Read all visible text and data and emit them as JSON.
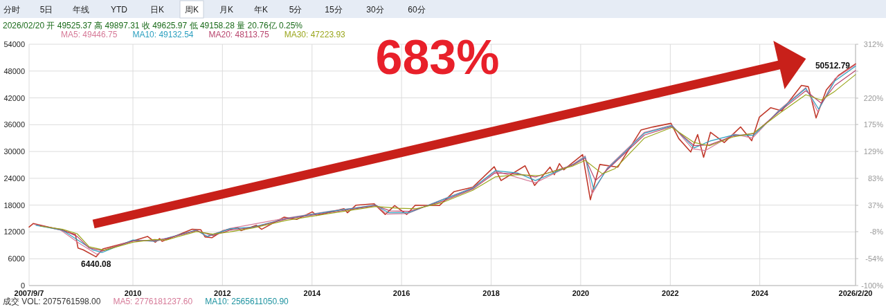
{
  "chart_data": {
    "type": "line",
    "annotations": [
      "分时 5日 年线 YTD 日K 周K 月K 年K 5分 15分 30分 60分",
      "2026/02/20 开 49525.37 高 49897.31 收 49625.97 低 49158.28 量 20.76亿 0.25%",
      "683%",
      {
        "text": "6440.08",
        "x": "2009-03-06",
        "y": 6440.08
      },
      "50512.79",
      "成交 VOL: 2075761598.00",
      "MA5: 2776181237.60",
      "MA10: 2565611050.90"
    ],
    "xlim": [
      "2007-09-07",
      "2026-02-20"
    ],
    "xticks": [
      {
        "value": "2007-09-07",
        "label": "2007/9/7"
      },
      {
        "value": "2010-01-01",
        "label": "2010"
      },
      {
        "value": "2012-01-01",
        "label": "2012"
      },
      {
        "value": "2014-01-01",
        "label": "2014"
      },
      {
        "value": "2016-01-01",
        "label": "2016"
      },
      {
        "value": "2018-01-01",
        "label": "2018"
      },
      {
        "value": "2020-01-01",
        "label": "2020"
      },
      {
        "value": "2022-01-01",
        "label": "2022"
      },
      {
        "value": "2024-01-01",
        "label": "2024"
      },
      {
        "value": "2026-02-20",
        "label": "2026/2/20"
      }
    ],
    "ylim": [
      0,
      54000
    ],
    "yticks": [
      0,
      6000,
      12000,
      18000,
      24000,
      30000,
      36000,
      42000,
      48000,
      54000
    ],
    "y2lim": [
      -100,
      312
    ],
    "y2ticks": [
      {
        "value": -100,
        "label": "-100%"
      },
      {
        "value": -54,
        "label": "-54%"
      },
      {
        "value": -8,
        "label": "-8%"
      },
      {
        "value": 37,
        "label": "37%"
      },
      {
        "value": 83,
        "label": "83%"
      },
      {
        "value": 129,
        "label": "129%"
      },
      {
        "value": 175,
        "label": "175%"
      },
      {
        "value": 220,
        "label": "220%"
      },
      {
        "value": 266,
        "label": null
      },
      {
        "value": 312,
        "label": "312%"
      }
    ],
    "grid": true,
    "legend": "top left",
    "series": [
      {
        "color": "#c0392b",
        "x": [
          "2007-09-07",
          "2007-10-12",
          "2008-05-16",
          "2008-09-19",
          "2008-10-10",
          "2008-11-21",
          "2009-03-06",
          "2009-05-01",
          "2010-01-01",
          "2010-04-30",
          "2010-07-02",
          "2010-08-06",
          "2010-08-27",
          "2011-04-29",
          "2011-07-08",
          "2011-08-12",
          "2011-10-07",
          "2012-01-06",
          "2012-05-04",
          "2012-06-01",
          "2012-10-05",
          "2012-11-16",
          "2013-05-17",
          "2013-08-30",
          "2014-01-03",
          "2014-02-07",
          "2014-09-19",
          "2014-10-17",
          "2014-12-26",
          "2015-05-22",
          "2015-08-21",
          "2015-11-06",
          "2016-02-12",
          "2016-04-22",
          "2016-11-04",
          "2017-03-03",
          "2017-08-04",
          "2018-01-26",
          "2018-03-23",
          "2018-10-05",
          "2018-12-21",
          "2019-04-26",
          "2019-05-31",
          "2019-07-12",
          "2019-08-16",
          "2020-01-17",
          "2020-03-20",
          "2020-06-05",
          "2020-10-30",
          "2021-05-07",
          "2021-08-13",
          "2022-01-07",
          "2022-03-11",
          "2022-06-17",
          "2022-08-12",
          "2022-09-30",
          "2022-11-25",
          "2023-03-17",
          "2023-07-28",
          "2023-10-27",
          "2023-12-29",
          "2024-03-29",
          "2024-06-28",
          "2024-12-06",
          "2025-01-31",
          "2025-04-04",
          "2025-06-27",
          "2025-10-03",
          "2026-02-20"
        ],
        "values": [
          13100,
          13900,
          12500,
          11400,
          8400,
          8000,
          6440.08,
          8200,
          10000,
          11000,
          9700,
          10500,
          9900,
          12600,
          12500,
          10900,
          10700,
          12300,
          13000,
          12300,
          13500,
          12600,
          15300,
          14800,
          16500,
          15700,
          17200,
          16300,
          18000,
          18300,
          15900,
          17900,
          15900,
          18000,
          17900,
          21000,
          22000,
          26600,
          23500,
          26800,
          22400,
          26500,
          24800,
          27300,
          25900,
          29300,
          19200,
          27100,
          26500,
          34800,
          35500,
          36300,
          32900,
          29900,
          33800,
          28700,
          34300,
          32000,
          35500,
          32400,
          37700,
          39800,
          39100,
          44800,
          44500,
          37500,
          43800,
          47000,
          49600
        ]
      },
      {
        "name": "MA5: 49446.75",
        "color": "#d67a98",
        "x": [
          "2007-10-19",
          "2008-05-23",
          "2008-10-17",
          "2009-03-13",
          "2009-05-08",
          "2010-01-01",
          "2010-07-09",
          "2011-06-03",
          "2011-08-26",
          "2012-03-02",
          "2013-06-07",
          "2014-06-06",
          "2015-06-05",
          "2015-09-04",
          "2016-02-19",
          "2016-12-02",
          "2017-08-04",
          "2018-02-09",
          "2018-12-28",
          "2019-11-01",
          "2020-02-07",
          "2020-04-03",
          "2020-08-07",
          "2021-06-04",
          "2022-01-14",
          "2022-07-01",
          "2022-10-14",
          "2023-06-02",
          "2023-11-03",
          "2024-06-07",
          "2025-01-10",
          "2025-04-18",
          "2025-09-05",
          "2026-02-20"
        ],
        "values": [
          13700,
          12400,
          9500,
          7000,
          7900,
          10100,
          9900,
          12400,
          11000,
          12800,
          15100,
          16700,
          18000,
          16000,
          16100,
          19300,
          21900,
          25600,
          23000,
          27200,
          29000,
          20500,
          26400,
          34300,
          35900,
          30600,
          30200,
          33900,
          33000,
          39300,
          44300,
          38900,
          46300,
          49400
        ]
      },
      {
        "name": "MA10: 49132.54",
        "color": "#2a9fbf",
        "x": [
          "2007-11-02",
          "2008-06-06",
          "2008-10-24",
          "2009-02-06",
          "2009-04-24",
          "2010-01-01",
          "2010-06-25",
          "2010-10-01",
          "2011-06-03",
          "2011-09-02",
          "2012-03-02",
          "2012-09-07",
          "2013-06-07",
          "2014-06-06",
          "2015-06-05",
          "2015-09-18",
          "2016-02-26",
          "2016-12-02",
          "2017-08-04",
          "2018-02-02",
          "2018-08-03",
          "2018-12-28",
          "2019-11-01",
          "2020-02-07",
          "2020-04-17",
          "2020-08-07",
          "2021-06-04",
          "2022-01-14",
          "2022-07-15",
          "2022-11-18",
          "2023-06-02",
          "2023-11-10",
          "2024-06-07",
          "2025-01-10",
          "2025-04-25",
          "2025-09-05",
          "2026-02-20"
        ],
        "values": [
          13500,
          12400,
          9900,
          8000,
          7400,
          10200,
          9900,
          10600,
          12400,
          11000,
          12700,
          13100,
          15000,
          16600,
          18000,
          16300,
          16300,
          19200,
          21800,
          25700,
          25200,
          23500,
          27100,
          28800,
          21500,
          26200,
          34100,
          35800,
          30800,
          32300,
          33700,
          33600,
          39100,
          44100,
          39500,
          45800,
          49100
        ]
      },
      {
        "name": "MA20: 48113.75",
        "color": "#b8456e",
        "x": [
          "2007-12-07",
          "2008-06-06",
          "2008-10-03",
          "2009-01-09",
          "2009-05-01",
          "2010-01-01",
          "2010-06-25",
          "2010-10-01",
          "2011-06-03",
          "2011-10-14",
          "2012-03-02",
          "2012-09-07",
          "2013-06-07",
          "2014-06-06",
          "2015-06-05",
          "2015-10-02",
          "2016-03-04",
          "2016-12-02",
          "2017-08-04",
          "2018-02-02",
          "2018-08-03",
          "2018-12-28",
          "2019-11-01",
          "2020-02-07",
          "2020-05-01",
          "2020-08-07",
          "2021-06-04",
          "2022-01-14",
          "2022-07-15",
          "2022-11-18",
          "2023-06-02",
          "2023-11-10",
          "2024-06-07",
          "2025-01-10",
          "2025-05-16",
          "2025-09-05",
          "2026-02-20"
        ],
        "values": [
          13400,
          12500,
          11000,
          8400,
          7800,
          10000,
          10100,
          10500,
          12300,
          11200,
          12400,
          13000,
          14900,
          16400,
          17900,
          16700,
          16600,
          18900,
          21600,
          25200,
          25000,
          24300,
          27000,
          28500,
          23500,
          26000,
          33700,
          35600,
          31300,
          31500,
          33500,
          34000,
          38900,
          43600,
          40800,
          44800,
          48100
        ]
      },
      {
        "name": "MA30: 47223.93",
        "color": "#9aa61c",
        "x": [
          "2007-12-07",
          "2008-06-06",
          "2008-10-03",
          "2009-01-09",
          "2009-05-15",
          "2010-01-01",
          "2010-06-25",
          "2010-10-01",
          "2011-06-03",
          "2011-10-14",
          "2012-03-02",
          "2012-09-07",
          "2013-06-07",
          "2014-06-06",
          "2015-06-05",
          "2015-12-04",
          "2016-04-29",
          "2016-12-02",
          "2017-08-04",
          "2018-02-02",
          "2018-08-03",
          "2019-01-25",
          "2019-11-01",
          "2020-02-07",
          "2020-06-26",
          "2020-10-09",
          "2021-06-04",
          "2022-01-14",
          "2022-07-15",
          "2022-11-18",
          "2023-06-02",
          "2023-11-10",
          "2024-06-07",
          "2025-01-10",
          "2025-05-16",
          "2025-09-05",
          "2026-02-20"
        ],
        "values": [
          13300,
          12600,
          11600,
          8700,
          7900,
          9700,
          10300,
          10200,
          12100,
          11500,
          12000,
          12900,
          14600,
          16200,
          17700,
          17300,
          17200,
          18600,
          21300,
          24300,
          24800,
          24600,
          26800,
          28000,
          25000,
          26200,
          33000,
          35400,
          32000,
          31300,
          33300,
          34100,
          38500,
          42700,
          41500,
          43500,
          47200
        ]
      }
    ]
  }
}
